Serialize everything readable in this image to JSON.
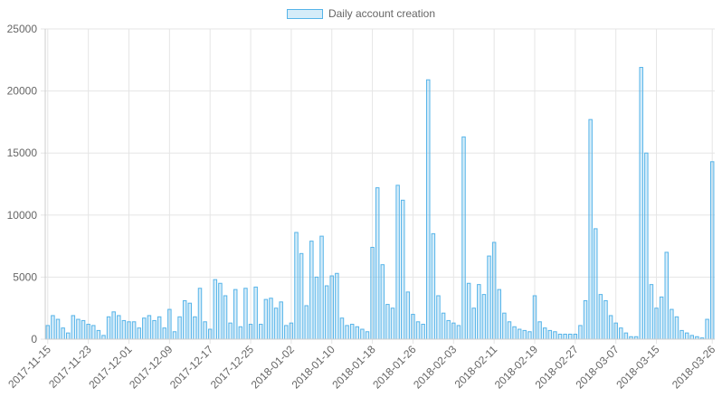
{
  "chart_data": {
    "type": "bar",
    "title": "",
    "xlabel": "",
    "ylabel": "",
    "ylim": [
      0,
      25000
    ],
    "y_ticks": [
      "0",
      "5000",
      "10000",
      "15000",
      "20000",
      "25000"
    ],
    "x_tick_labels": [
      "2017-11-15",
      "2017-11-23",
      "2017-12-01",
      "2017-12-09",
      "2017-12-17",
      "2017-12-25",
      "2018-01-02",
      "2018-01-10",
      "2018-01-18",
      "2018-01-26",
      "2018-02-03",
      "2018-02-11",
      "2018-02-19",
      "2018-02-27",
      "2018-03-07",
      "2018-03-15",
      "2018-03-26"
    ],
    "legend": {
      "position": "top",
      "label": "Daily account creation"
    },
    "grid": true,
    "colors": {
      "bar_border": "#56b4e9",
      "bar_fill": "rgba(86,180,233,0.25)",
      "grid": "#e5e5e5",
      "text": "#666666"
    },
    "x_start": "2017-11-15",
    "x_end": "2018-03-26",
    "series": [
      {
        "name": "Daily account creation",
        "values": [
          1100,
          1900,
          1600,
          900,
          500,
          1900,
          1600,
          1500,
          1200,
          1100,
          700,
          300,
          1800,
          2200,
          1900,
          1500,
          1400,
          1400,
          900,
          1700,
          1900,
          1500,
          1800,
          900,
          2400,
          600,
          1800,
          3100,
          2900,
          1800,
          4100,
          1400,
          800,
          4800,
          4500,
          3500,
          1300,
          4000,
          1000,
          4100,
          1200,
          4200,
          1200,
          3200,
          3300,
          2500,
          3000,
          1100,
          1300,
          8600,
          6900,
          2700,
          7900,
          5000,
          8300,
          4300,
          5100,
          5300,
          1700,
          1100,
          1200,
          1000,
          800,
          600,
          7400,
          12200,
          6000,
          2800,
          2500,
          12400,
          11200,
          3800,
          2000,
          1400,
          1200,
          20900,
          8500,
          3500,
          2100,
          1500,
          1300,
          1100,
          16300,
          4500,
          2500,
          4400,
          3600,
          6700,
          7800,
          4000,
          2100,
          1400,
          1000,
          800,
          700,
          600,
          3500,
          1400,
          900,
          700,
          600,
          400,
          400,
          400,
          400,
          1100,
          3100,
          17700,
          8900,
          3600,
          3100,
          1900,
          1300,
          900,
          500,
          200,
          200,
          21900,
          15000,
          4400,
          2500,
          3400,
          7000,
          2400,
          1800,
          700,
          500,
          300,
          200,
          100,
          1600,
          14300
        ]
      }
    ]
  }
}
